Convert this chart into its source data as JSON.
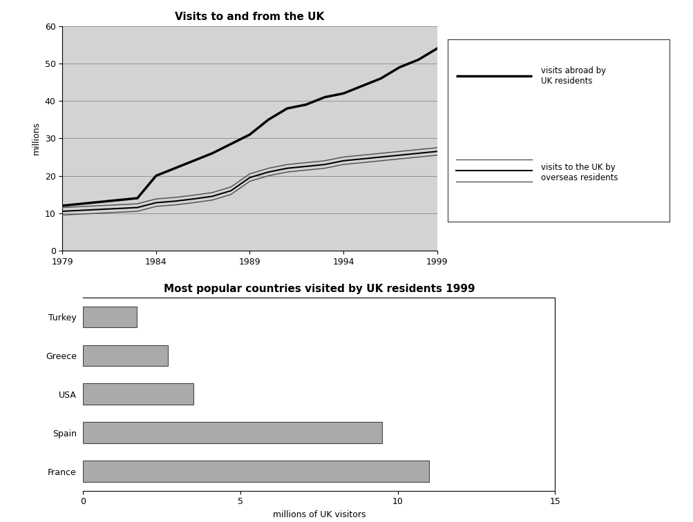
{
  "line_chart": {
    "title": "Visits to and from the UK",
    "years": [
      1979,
      1981,
      1983,
      1984,
      1985,
      1986,
      1987,
      1988,
      1989,
      1990,
      1991,
      1992,
      1993,
      1994,
      1995,
      1996,
      1997,
      1998,
      1999
    ],
    "visits_abroad": [
      12,
      13,
      14,
      20,
      22,
      24,
      26,
      28.5,
      31,
      35,
      38,
      39,
      41,
      42,
      44,
      46,
      49,
      51,
      54
    ],
    "visits_to_uk_upper": [
      11.5,
      12,
      12.5,
      13.8,
      14.2,
      14.8,
      15.5,
      17,
      20.5,
      22,
      23,
      23.5,
      24,
      25,
      25.5,
      26,
      26.5,
      27,
      27.5
    ],
    "visits_to_uk_mid": [
      10.5,
      11,
      11.5,
      12.8,
      13.2,
      13.8,
      14.5,
      16,
      19.5,
      21,
      22,
      22.5,
      23,
      24,
      24.5,
      25,
      25.5,
      26,
      26.5
    ],
    "visits_to_uk_lower": [
      9.5,
      10,
      10.5,
      11.8,
      12.2,
      12.8,
      13.5,
      15,
      18.5,
      20,
      21,
      21.5,
      22,
      23,
      23.5,
      24,
      24.5,
      25,
      25.5
    ],
    "ylabel": "millions",
    "ylim": [
      0,
      60
    ],
    "yticks": [
      0,
      10,
      20,
      30,
      40,
      50,
      60
    ],
    "xticks": [
      1979,
      1984,
      1989,
      1994,
      1999
    ],
    "bg_color": "#d3d3d3",
    "line_color_abroad": "#000000",
    "line_color_uk": "#555555",
    "legend_abroad": "visits abroad by\nUK residents",
    "legend_uk": "visits to the UK by\noverseas residents"
  },
  "bar_chart": {
    "title": "Most popular countries visited by UK residents 1999",
    "countries": [
      "France",
      "Spain",
      "USA",
      "Greece",
      "Turkey"
    ],
    "values": [
      11.0,
      9.5,
      3.5,
      2.7,
      1.7
    ],
    "bar_color": "#aaaaaa",
    "bar_edgecolor": "#444444",
    "xlabel": "millions of UK visitors",
    "xlim": [
      0,
      15
    ],
    "xticks": [
      0,
      5,
      10,
      15
    ]
  }
}
